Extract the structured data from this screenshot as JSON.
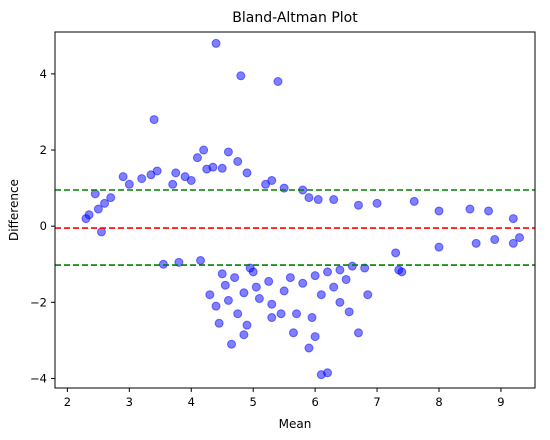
{
  "chart_data": {
    "type": "scatter",
    "title": "Bland-Altman Plot",
    "xlabel": "Mean",
    "ylabel": "Difference",
    "xlim": [
      1.8,
      9.55
    ],
    "ylim": [
      -4.25,
      5.1
    ],
    "xticks": [
      2,
      3,
      4,
      5,
      6,
      7,
      8,
      9
    ],
    "yticks": [
      -4,
      -2,
      0,
      2,
      4
    ],
    "grid": false,
    "legend": "none",
    "reference_lines": [
      {
        "name": "mean-difference",
        "y": -0.05,
        "color": "#ff0000",
        "style": "dashed"
      },
      {
        "name": "upper-limit-of-agreement",
        "y": 0.95,
        "color": "#008000",
        "style": "dashed"
      },
      {
        "name": "lower-limit-of-agreement",
        "y": -1.02,
        "color": "#008000",
        "style": "dashed"
      }
    ],
    "point_color": "#0000ff",
    "point_opacity": 0.5,
    "points": [
      [
        4.4,
        4.8
      ],
      [
        4.8,
        3.95
      ],
      [
        5.4,
        3.8
      ],
      [
        3.4,
        2.8
      ],
      [
        4.2,
        2.0
      ],
      [
        4.6,
        1.95
      ],
      [
        3.45,
        1.45
      ],
      [
        4.1,
        1.8
      ],
      [
        4.35,
        1.55
      ],
      [
        4.5,
        1.52
      ],
      [
        4.75,
        1.7
      ],
      [
        3.9,
        1.3
      ],
      [
        2.9,
        1.3
      ],
      [
        5.2,
        1.1
      ],
      [
        5.5,
        1.0
      ],
      [
        3.0,
        1.1
      ],
      [
        2.45,
        0.85
      ],
      [
        2.7,
        0.75
      ],
      [
        3.7,
        1.1
      ],
      [
        4.0,
        1.2
      ],
      [
        4.9,
        1.4
      ],
      [
        5.8,
        0.95
      ],
      [
        6.3,
        0.7
      ],
      [
        6.7,
        0.55
      ],
      [
        7.0,
        0.6
      ],
      [
        7.6,
        0.65
      ],
      [
        8.0,
        0.4
      ],
      [
        8.5,
        0.45
      ],
      [
        8.8,
        0.4
      ],
      [
        9.2,
        0.2
      ],
      [
        9.3,
        -0.3
      ],
      [
        9.2,
        -0.45
      ],
      [
        8.9,
        -0.35
      ],
      [
        8.6,
        -0.45
      ],
      [
        8.0,
        -0.55
      ],
      [
        7.3,
        -0.7
      ],
      [
        7.4,
        -1.2
      ],
      [
        7.35,
        -1.15
      ],
      [
        6.8,
        -1.1
      ],
      [
        6.6,
        -1.05
      ],
      [
        6.4,
        -1.15
      ],
      [
        6.2,
        -1.2
      ],
      [
        6.0,
        -1.3
      ],
      [
        5.8,
        -1.5
      ],
      [
        5.6,
        -1.35
      ],
      [
        5.5,
        -1.7
      ],
      [
        5.3,
        -2.05
      ],
      [
        5.45,
        -2.3
      ],
      [
        5.3,
        -2.4
      ],
      [
        5.7,
        -2.3
      ],
      [
        5.65,
        -2.8
      ],
      [
        5.9,
        -3.2
      ],
      [
        6.0,
        -2.9
      ],
      [
        6.1,
        -1.8
      ],
      [
        6.3,
        -1.6
      ],
      [
        6.5,
        -1.4
      ],
      [
        6.1,
        -3.9
      ],
      [
        6.2,
        -3.85
      ],
      [
        6.55,
        -2.25
      ],
      [
        6.4,
        -2.0
      ],
      [
        6.7,
        -2.8
      ],
      [
        6.85,
        -1.8
      ],
      [
        5.95,
        -2.4
      ],
      [
        4.9,
        -2.6
      ],
      [
        4.75,
        -2.3
      ],
      [
        4.85,
        -2.85
      ],
      [
        4.65,
        -3.1
      ],
      [
        4.4,
        -2.1
      ],
      [
        4.45,
        -2.55
      ],
      [
        4.3,
        -1.8
      ],
      [
        4.55,
        -1.55
      ],
      [
        4.7,
        -1.35
      ],
      [
        4.5,
        -1.25
      ],
      [
        4.95,
        -1.1
      ],
      [
        5.05,
        -1.6
      ],
      [
        5.1,
        -1.9
      ],
      [
        5.0,
        -1.2
      ],
      [
        4.6,
        -1.95
      ],
      [
        4.85,
        -1.75
      ],
      [
        5.25,
        -1.45
      ],
      [
        3.55,
        -1.0
      ],
      [
        3.8,
        -0.95
      ],
      [
        4.15,
        -0.9
      ],
      [
        2.55,
        -0.15
      ],
      [
        2.3,
        0.2
      ],
      [
        2.35,
        0.3
      ],
      [
        2.5,
        0.45
      ],
      [
        2.6,
        0.6
      ],
      [
        3.2,
        1.25
      ],
      [
        3.35,
        1.35
      ],
      [
        4.25,
        1.5
      ],
      [
        3.75,
        1.4
      ],
      [
        5.3,
        1.2
      ],
      [
        5.9,
        0.75
      ],
      [
        6.05,
        0.7
      ]
    ]
  }
}
